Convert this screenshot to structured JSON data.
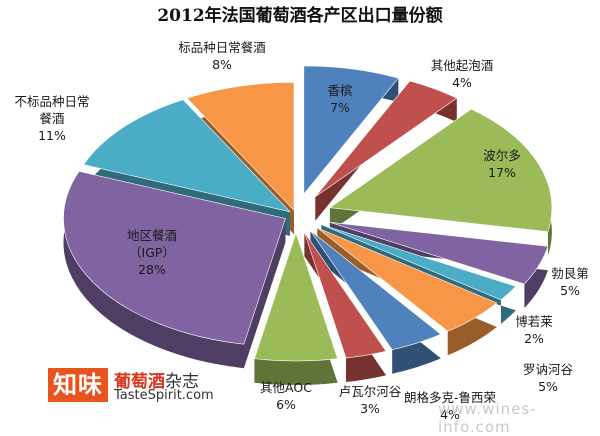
{
  "chart_data": {
    "type": "pie",
    "title": "2012年法国葡萄酒各产区出口量份额",
    "slices": [
      {
        "name": "香槟",
        "value": 7,
        "label": "7%",
        "color": "#4f81bd"
      },
      {
        "name": "其他起泡酒",
        "value": 4,
        "label": "4%",
        "color": "#c0504d"
      },
      {
        "name": "波尔多",
        "value": 17,
        "label": "17%",
        "color": "#9bbb59"
      },
      {
        "name": "勃艮第",
        "value": 5,
        "label": "5%",
        "color": "#8064a2"
      },
      {
        "name": "博若莱",
        "value": 2,
        "label": "2%",
        "color": "#4bacc6"
      },
      {
        "name": "罗讷河谷",
        "value": 5,
        "label": "5%",
        "color": "#f79646"
      },
      {
        "name": "朗格多克-鲁西荣",
        "value": 4,
        "label": "4%",
        "color": "#4f81bd"
      },
      {
        "name": "卢瓦尔河谷",
        "value": 3,
        "label": "3%",
        "color": "#c0504d"
      },
      {
        "name": "其他AOC",
        "value": 6,
        "label": "6%",
        "color": "#9bbb59"
      },
      {
        "name": "地区餐酒（IGP）",
        "value": 28,
        "label": "28%",
        "color": "#8064a2"
      },
      {
        "name": "不标品种日常餐酒",
        "value": 11,
        "label": "11%",
        "color": "#4bacc6"
      },
      {
        "name": "标品种日常餐酒",
        "value": 8,
        "label": "8%",
        "color": "#f79646"
      }
    ]
  },
  "branding": {
    "logo_mark": "知味",
    "logo_name_red": "葡萄酒",
    "logo_name_rest": "杂志",
    "logo_site": "TasteSpirit.com",
    "watermark": "www.wines-info.com"
  }
}
